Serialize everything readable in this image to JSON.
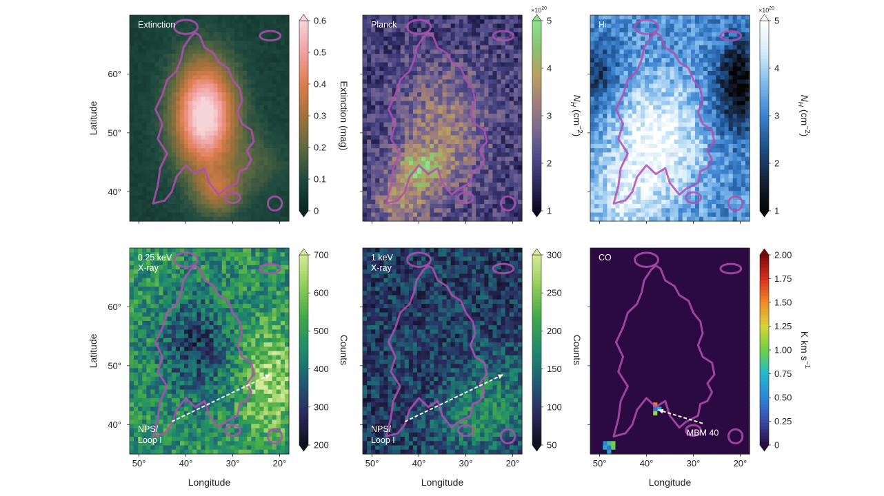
{
  "chart_data": [
    {
      "type": "heatmap",
      "panel_label": "Extinction",
      "xlabel": "",
      "ylabel": "Latitude",
      "xlim": [
        52,
        18
      ],
      "ylim": [
        35,
        70
      ],
      "x_ticks": [
        50,
        40,
        30,
        20
      ],
      "y_ticks": [
        40,
        50,
        60
      ],
      "y_tick_labels": [
        "40°",
        "50°",
        "60°"
      ],
      "x_tick_labels": [],
      "colorbar": {
        "label": "Extinction (mag)",
        "ticks": [
          0,
          0.1,
          0.2,
          0.3,
          0.4,
          0.5,
          0.6
        ],
        "tick_labels": [
          "0",
          "0.1",
          "0.2",
          "0.3",
          "0.4",
          "0.5",
          "0.6"
        ],
        "min": 0,
        "max": 0.6,
        "multiplier": "",
        "colormap": [
          "#08251f",
          "#1f4a3f",
          "#5f6a40",
          "#a3713a",
          "#dd7d4f",
          "#f0a0a0",
          "#f6d5d8"
        ]
      },
      "contour_color": "#b04fb0"
    },
    {
      "type": "heatmap",
      "panel_label": "Planck",
      "xlabel": "",
      "ylabel": "",
      "xlim": [
        52,
        18
      ],
      "ylim": [
        35,
        70
      ],
      "x_ticks": [
        50,
        40,
        30,
        20
      ],
      "y_ticks": [
        40,
        50,
        60
      ],
      "y_tick_labels": [],
      "x_tick_labels": [],
      "colorbar": {
        "label": "N_H (cm^-2)",
        "label_parts": {
          "n": "N",
          "sub": "H",
          "unit_pre": " (cm",
          "sup": "−2",
          "unit_post": ")"
        },
        "ticks": [
          1,
          2,
          3,
          4,
          5
        ],
        "tick_labels": [
          "1",
          "2",
          "3",
          "4",
          "5"
        ],
        "min": 1,
        "max": 5,
        "multiplier": "×10",
        "multiplier_exp": "20",
        "colormap": [
          "#0d0620",
          "#2c2a5e",
          "#4e4a8a",
          "#7a6a90",
          "#a27f7a",
          "#b9a060",
          "#89c270",
          "#8fe28f"
        ]
      },
      "contour_color": "#b04fb0"
    },
    {
      "type": "heatmap",
      "panel_label": "HI",
      "xlabel": "",
      "ylabel": "",
      "xlim": [
        52,
        18
      ],
      "ylim": [
        35,
        70
      ],
      "x_ticks": [
        50,
        40,
        30,
        20
      ],
      "y_ticks": [
        40,
        50,
        60
      ],
      "y_tick_labels": [],
      "x_tick_labels": [],
      "colorbar": {
        "label": "N_H (cm^-2)",
        "label_parts": {
          "n": "N",
          "sub": "H",
          "unit_pre": " (cm",
          "sup": "−2",
          "unit_post": ")"
        },
        "ticks": [
          1,
          2,
          3,
          4,
          5
        ],
        "tick_labels": [
          "1",
          "2",
          "3",
          "4",
          "5"
        ],
        "min": 1,
        "max": 5,
        "multiplier": "×10",
        "multiplier_exp": "20",
        "colormap": [
          "#050505",
          "#152238",
          "#1f4f8a",
          "#3b82cf",
          "#7fb9ea",
          "#d5ebf8",
          "#ffffff"
        ]
      },
      "contour_color": "#b04fb0"
    },
    {
      "type": "heatmap",
      "panel_label": "0.25 keV\nX-ray",
      "xlabel": "Longitude",
      "ylabel": "Latitude",
      "xlim": [
        52,
        18
      ],
      "ylim": [
        35,
        70
      ],
      "x_ticks": [
        50,
        40,
        30,
        20
      ],
      "y_ticks": [
        40,
        50,
        60
      ],
      "y_tick_labels": [
        "40°",
        "50°",
        "60°"
      ],
      "x_tick_labels": [
        "50°",
        "40°",
        "30°",
        "20°"
      ],
      "colorbar": {
        "label": "Counts",
        "ticks": [
          200,
          300,
          400,
          500,
          600,
          700
        ],
        "tick_labels": [
          "200",
          "300",
          "400",
          "500",
          "600",
          "700"
        ],
        "min": 200,
        "max": 700,
        "multiplier": "",
        "colormap": [
          "#0e0e1c",
          "#2a2a5e",
          "#1f5c73",
          "#1f8a6e",
          "#3fa64a",
          "#8fcc5a",
          "#d7ea9a"
        ]
      },
      "annotation": {
        "text": "NPS/\nLoop I",
        "arrow_from": [
          43,
          40.5
        ],
        "arrow_to": [
          22,
          48.5
        ]
      },
      "contour_color": "#b04fb0"
    },
    {
      "type": "heatmap",
      "panel_label": "1 keV\nX-ray",
      "xlabel": "Longitude",
      "ylabel": "",
      "xlim": [
        52,
        18
      ],
      "ylim": [
        35,
        70
      ],
      "x_ticks": [
        50,
        40,
        30,
        20
      ],
      "y_ticks": [
        40,
        50,
        60
      ],
      "y_tick_labels": [],
      "x_tick_labels": [
        "50°",
        "40°",
        "30°",
        "20°"
      ],
      "colorbar": {
        "label": "Counts",
        "ticks": [
          50,
          100,
          150,
          200,
          250,
          300
        ],
        "tick_labels": [
          "50",
          "100",
          "150",
          "200",
          "250",
          "300"
        ],
        "min": 50,
        "max": 300,
        "multiplier": "",
        "colormap": [
          "#0e0e1c",
          "#2a2a5e",
          "#1f5c73",
          "#1f8a6e",
          "#3fa64a",
          "#8fcc5a",
          "#d7ea9a"
        ]
      },
      "annotation": {
        "text": "NPS/\nLoop I",
        "arrow_from": [
          43,
          40.5
        ],
        "arrow_to": [
          22,
          48.5
        ]
      },
      "contour_color": "#b04fb0"
    },
    {
      "type": "heatmap",
      "panel_label": "CO",
      "xlabel": "Longitude",
      "ylabel": "",
      "xlim": [
        52,
        18
      ],
      "ylim": [
        35,
        70
      ],
      "x_ticks": [
        50,
        40,
        30,
        20
      ],
      "y_ticks": [
        40,
        50,
        60
      ],
      "y_tick_labels": [],
      "x_tick_labels": [
        "50°",
        "40°",
        "30°",
        "20°"
      ],
      "colorbar": {
        "label": "K km s^-1",
        "label_parts": {
          "n": "K km s",
          "sub": "",
          "unit_pre": "",
          "sup": "−1",
          "unit_post": ""
        },
        "ticks": [
          0,
          0.25,
          0.5,
          0.75,
          1.0,
          1.25,
          1.5,
          1.75,
          2.0
        ],
        "tick_labels": [
          "0",
          "0.25",
          "0.50",
          "0.75",
          "1.00",
          "1.25",
          "1.50",
          "1.75",
          "2.00"
        ],
        "min": 0,
        "max": 2,
        "multiplier": "",
        "colormap": [
          "#2a0a40",
          "#3b4aa8",
          "#2f86d8",
          "#25b9c9",
          "#6fcf4a",
          "#d9d33a",
          "#ee8a2a",
          "#d4301f",
          "#7a0a0a"
        ]
      },
      "annotation": {
        "text": "MBM 40",
        "arrow_from": [
          28,
          40.2
        ],
        "arrow_to": [
          37.5,
          42.5
        ]
      },
      "contour_color": "#b04fb0"
    }
  ],
  "contour_outline": [
    [
      47,
      38
    ],
    [
      46,
      41
    ],
    [
      45.5,
      44
    ],
    [
      44,
      46.5
    ],
    [
      46,
      49
    ],
    [
      45,
      51.5
    ],
    [
      46.5,
      54
    ],
    [
      45,
      56.5
    ],
    [
      44,
      59
    ],
    [
      42,
      60.5
    ],
    [
      41,
      62.5
    ],
    [
      40.5,
      64.5
    ],
    [
      39,
      66.3
    ],
    [
      38,
      67
    ],
    [
      37,
      66.5
    ],
    [
      36,
      64.5
    ],
    [
      34,
      63.5
    ],
    [
      33,
      62
    ],
    [
      31,
      61
    ],
    [
      30,
      59
    ],
    [
      28.5,
      57.5
    ],
    [
      28,
      55.5
    ],
    [
      29,
      53.5
    ],
    [
      28,
      51.5
    ],
    [
      26,
      50.5
    ],
    [
      25.5,
      48.5
    ],
    [
      27,
      47
    ],
    [
      26,
      45.5
    ],
    [
      27,
      44
    ],
    [
      28.5,
      43.5
    ],
    [
      29,
      41.5
    ],
    [
      31.5,
      40.5
    ],
    [
      33,
      39.5
    ],
    [
      35,
      41.5
    ],
    [
      36,
      44
    ],
    [
      38,
      43
    ],
    [
      40,
      44.5
    ],
    [
      42,
      42.5
    ],
    [
      43,
      40
    ],
    [
      44.5,
      38.5
    ]
  ]
}
